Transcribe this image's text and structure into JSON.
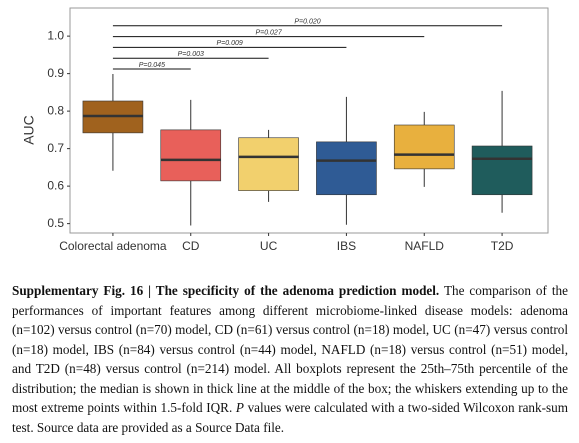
{
  "chart_data": {
    "type": "box",
    "y_label": "AUC",
    "categories": [
      "Colorectal adenoma",
      "CD",
      "UC",
      "IBS",
      "NAFLD",
      "T2D"
    ],
    "colors": [
      "#a0621e",
      "#e8605a",
      "#f2d06d",
      "#2f5b95",
      "#e8b03e",
      "#1f5c5c"
    ],
    "boxes": [
      {
        "low": 0.641,
        "q1": 0.742,
        "median": 0.787,
        "q3": 0.827,
        "high": 0.899
      },
      {
        "low": 0.495,
        "q1": 0.614,
        "median": 0.67,
        "q3": 0.75,
        "high": 0.83
      },
      {
        "low": 0.558,
        "q1": 0.588,
        "median": 0.678,
        "q3": 0.729,
        "high": 0.75
      },
      {
        "low": 0.497,
        "q1": 0.577,
        "median": 0.668,
        "q3": 0.718,
        "high": 0.838
      },
      {
        "low": 0.598,
        "q1": 0.646,
        "median": 0.684,
        "q3": 0.763,
        "high": 0.798
      },
      {
        "low": 0.529,
        "q1": 0.577,
        "median": 0.673,
        "q3": 0.707,
        "high": 0.854
      }
    ],
    "comparisons": [
      {
        "groups": [
          "Colorectal adenoma",
          "CD"
        ],
        "label": "P=0.045"
      },
      {
        "groups": [
          "Colorectal adenoma",
          "UC"
        ],
        "label": "P=0.003"
      },
      {
        "groups": [
          "Colorectal adenoma",
          "IBS"
        ],
        "label": "P=0.009"
      },
      {
        "groups": [
          "Colorectal adenoma",
          "NAFLD"
        ],
        "label": "P=0.027"
      },
      {
        "groups": [
          "Colorectal adenoma",
          "T2D"
        ],
        "label": "P=0.020"
      }
    ],
    "ylim": [
      0.475,
      1.075
    ],
    "yticks": [
      0.5,
      0.6,
      0.7,
      0.8,
      0.9,
      {
        "value": 1,
        "label": "1.0"
      }
    ]
  },
  "caption": {
    "title": "Supplementary Fig. 16 | The specificity of the adenoma prediction model.",
    "text_before": " The comparison of the performances of important features among different microbiome-linked disease models: adenoma (n=102) versus control (n=70) model, CD (n=61) versus control (n=18) model, UC (n=47) versus control (n=18) model, IBS (n=84) versus control (n=44) model, NAFLD (n=18) versus control (n=51) model, and T2D (n=48) versus control (n=214) model. All boxplots represent the 25th–75th percentile of the distribution; the median is shown in thick line at the middle of the box; the whiskers extending up to the most extreme points within 1.5-fold IQR. ",
    "italic": "P",
    "text_after": " values were calculated with a two-sided Wilcoxon rank-sum test. Source data are provided as a Source Data file."
  }
}
